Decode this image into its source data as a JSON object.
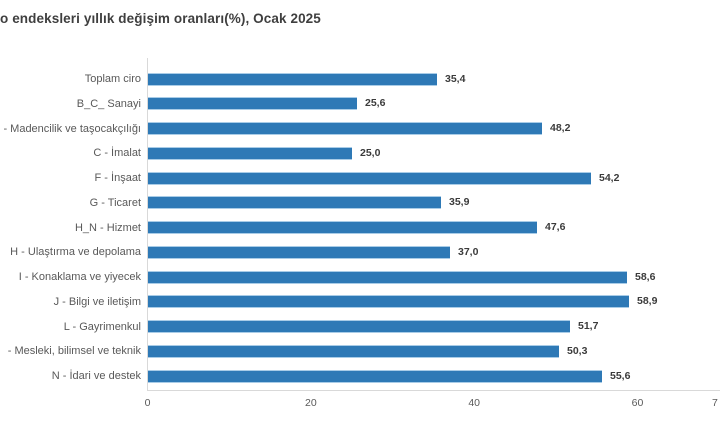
{
  "title": "o endeksleri yıllık değişim oranları(%), Ocak 2025",
  "colors": {
    "bar_fill": "#2e79b6",
    "bar_edge": "#a9cce7",
    "axis_line": "#d9d9d9",
    "category_label": "#595959",
    "value_label": "#3b3b3b",
    "title": "#3f3f3f",
    "background": "#ffffff"
  },
  "chart_data": {
    "type": "bar",
    "orientation": "horizontal",
    "title": "o endeksleri yıllık değişim oranları(%), Ocak 2025",
    "categories": [
      "Toplam ciro",
      "B_C_ Sanayi",
      "- Madencilik ve taşocakçılığı",
      "C - İmalat",
      "F - İnşaat",
      "G - Ticaret",
      "H_N - Hizmet",
      "H - Ulaştırma ve depolama",
      "I - Konaklama ve yiyecek",
      "J - Bilgi ve iletişim",
      "L - Gayrimenkul",
      "- Mesleki, bilimsel ve teknik",
      "N - İdari ve destek"
    ],
    "values": [
      35.4,
      25.6,
      48.2,
      25.0,
      54.2,
      35.9,
      47.6,
      37.0,
      58.6,
      58.9,
      51.7,
      50.3,
      55.6
    ],
    "value_labels": [
      "35,4",
      "25,6",
      "48,2",
      "25,0",
      "54,2",
      "35,9",
      "47,6",
      "37,0",
      "58,6",
      "58,9",
      "51,7",
      "50,3",
      "55,6"
    ],
    "xlabel": "",
    "ylabel": "",
    "xlim": [
      0,
      70
    ],
    "x_ticks": [
      {
        "value": 0,
        "label": "0"
      },
      {
        "value": 20,
        "label": "20"
      },
      {
        "value": 40,
        "label": "40"
      },
      {
        "value": 60,
        "label": "60"
      }
    ],
    "partial_right_tick_label": "7",
    "grid": false,
    "legend": "none",
    "decimal_separator": ","
  }
}
